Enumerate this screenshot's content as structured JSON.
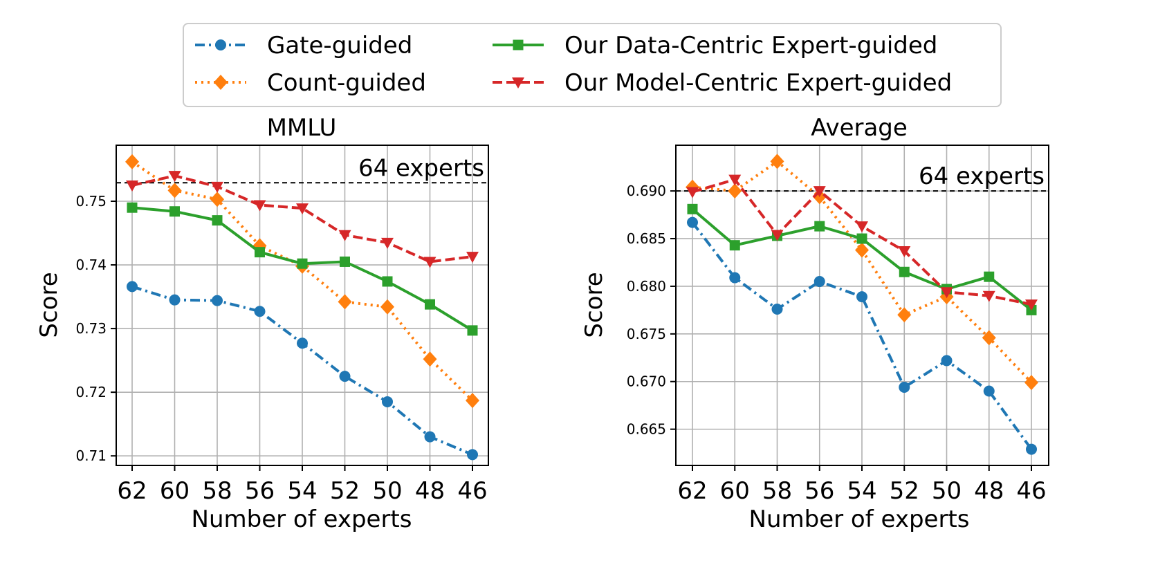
{
  "legend": [
    {
      "label": "Gate-guided",
      "color": "#1f77b4",
      "marker": "circle",
      "dash": "dashdot"
    },
    {
      "label": "Count-guided",
      "color": "#ff7f0e",
      "marker": "diamond",
      "dash": "dotted"
    },
    {
      "label": "Our Data-Centric Expert-guided",
      "color": "#2ca02c",
      "marker": "square",
      "dash": "solid"
    },
    {
      "label": "Our Model-Centric Expert-guided",
      "color": "#d62728",
      "marker": "triangle-down",
      "dash": "dashed"
    }
  ],
  "chart_data": [
    {
      "type": "line",
      "title": "MMLU",
      "xlabel": "Number of experts",
      "ylabel": "Score",
      "categories": [
        "62",
        "60",
        "58",
        "56",
        "54",
        "52",
        "50",
        "48",
        "46"
      ],
      "ylim": [
        0.7085,
        0.7588
      ],
      "yticks": [
        "0.71",
        "0.72",
        "0.73",
        "0.74",
        "0.75"
      ],
      "grid": true,
      "reference_line": {
        "value": 0.7529,
        "label": "64 experts"
      },
      "series": [
        {
          "name": "Gate-guided",
          "values": [
            0.7366,
            0.7345,
            0.7344,
            0.7327,
            0.7277,
            0.7225,
            0.7185,
            0.713,
            0.7102
          ]
        },
        {
          "name": "Count-guided",
          "values": [
            0.7562,
            0.7517,
            0.7503,
            0.743,
            0.7398,
            0.7342,
            0.7334,
            0.7252,
            0.7187
          ]
        },
        {
          "name": "Our Data-Centric Expert-guided",
          "values": [
            0.749,
            0.7484,
            0.747,
            0.742,
            0.7402,
            0.7405,
            0.7374,
            0.7338,
            0.7297
          ]
        },
        {
          "name": "Our Model-Centric Expert-guided",
          "values": [
            0.7525,
            0.754,
            0.7523,
            0.7494,
            0.7489,
            0.7447,
            0.7435,
            0.7405,
            0.7413
          ]
        }
      ]
    },
    {
      "type": "line",
      "title": "Average",
      "xlabel": "Number of experts",
      "ylabel": "Score",
      "categories": [
        "62",
        "60",
        "58",
        "56",
        "54",
        "52",
        "50",
        "48",
        "46"
      ],
      "ylim": [
        0.6612,
        0.6948
      ],
      "yticks": [
        "0.665",
        "0.670",
        "0.675",
        "0.680",
        "0.685",
        "0.690"
      ],
      "grid": true,
      "reference_line": {
        "value": 0.69,
        "label": "64 experts"
      },
      "series": [
        {
          "name": "Gate-guided",
          "values": [
            0.6867,
            0.6809,
            0.6776,
            0.6805,
            0.6789,
            0.6694,
            0.6722,
            0.669,
            0.6629
          ]
        },
        {
          "name": "Count-guided",
          "values": [
            0.6904,
            0.69,
            0.6931,
            0.6894,
            0.6838,
            0.677,
            0.6789,
            0.6746,
            0.6699
          ]
        },
        {
          "name": "Our Data-Centric Expert-guided",
          "values": [
            0.6881,
            0.6843,
            0.6853,
            0.6863,
            0.685,
            0.6815,
            0.6797,
            0.681,
            0.6775
          ]
        },
        {
          "name": "Our Model-Centric Expert-guided",
          "values": [
            0.6899,
            0.6912,
            0.6854,
            0.69,
            0.6863,
            0.6837,
            0.6794,
            0.679,
            0.6781
          ]
        }
      ]
    }
  ]
}
